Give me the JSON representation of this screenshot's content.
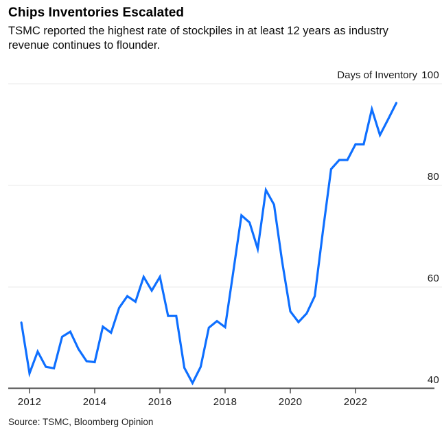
{
  "header": {
    "title": "Chips Inventories Escalated",
    "subtitle": "TSMC reported the highest rate of stockpiles in at least 12 years as industry revenue continues to flounder."
  },
  "source": "Source: TSMC, Bloomberg Opinion",
  "chart_data": {
    "type": "line",
    "title": "Chips Inventories Escalated",
    "unit_label": "Days of Inventory",
    "legend": "none",
    "grid": "horizontal-only",
    "ylim": [
      40,
      100
    ],
    "y_ticks": [
      100,
      80,
      60,
      40
    ],
    "y_tick_side": "right",
    "x_ticks": [
      2012,
      2014,
      2016,
      2018,
      2020,
      2022
    ],
    "x_range_decimal_years": [
      2011.75,
      2023.25
    ],
    "x_step_years": 0.25,
    "categories": [
      "2011 Q3",
      "2011 Q4",
      "2012 Q1",
      "2012 Q2",
      "2012 Q3",
      "2012 Q4",
      "2013 Q1",
      "2013 Q2",
      "2013 Q3",
      "2013 Q4",
      "2014 Q1",
      "2014 Q2",
      "2014 Q3",
      "2014 Q4",
      "2015 Q1",
      "2015 Q2",
      "2015 Q3",
      "2015 Q4",
      "2016 Q1",
      "2016 Q2",
      "2016 Q3",
      "2016 Q4",
      "2017 Q1",
      "2017 Q2",
      "2017 Q3",
      "2017 Q4",
      "2018 Q1",
      "2018 Q2",
      "2018 Q3",
      "2018 Q4",
      "2019 Q1",
      "2019 Q2",
      "2019 Q3",
      "2019 Q4",
      "2020 Q1",
      "2020 Q2",
      "2020 Q3",
      "2020 Q4",
      "2021 Q1",
      "2021 Q2",
      "2021 Q3",
      "2021 Q4",
      "2022 Q1",
      "2022 Q2",
      "2022 Q3",
      "2022 Q4",
      "2023 Q1"
    ],
    "series": [
      {
        "name": "TSMC days of inventory",
        "color": "#0e6fff",
        "values": [
          53,
          43,
          47.3,
          44.3,
          44,
          50.2,
          51.2,
          47.8,
          45.4,
          45.2,
          52.2,
          51,
          55.9,
          58.2,
          57.1,
          62,
          59.3,
          62,
          54.3,
          54.3,
          44.1,
          41.1,
          44.3,
          52,
          53.3,
          52.1,
          63,
          74.1,
          72.7,
          67.5,
          79.1,
          76.2,
          65,
          55.2,
          53.1,
          54.8,
          58.2,
          71,
          83.2,
          85,
          85,
          88.1,
          88.1,
          95,
          89.9,
          93,
          96.2
        ]
      }
    ],
    "colors": {
      "line": "#0e6fff",
      "gridline": "#e9e9e9",
      "axis": "#4a4a4a",
      "text": "#1a1a1a"
    }
  }
}
